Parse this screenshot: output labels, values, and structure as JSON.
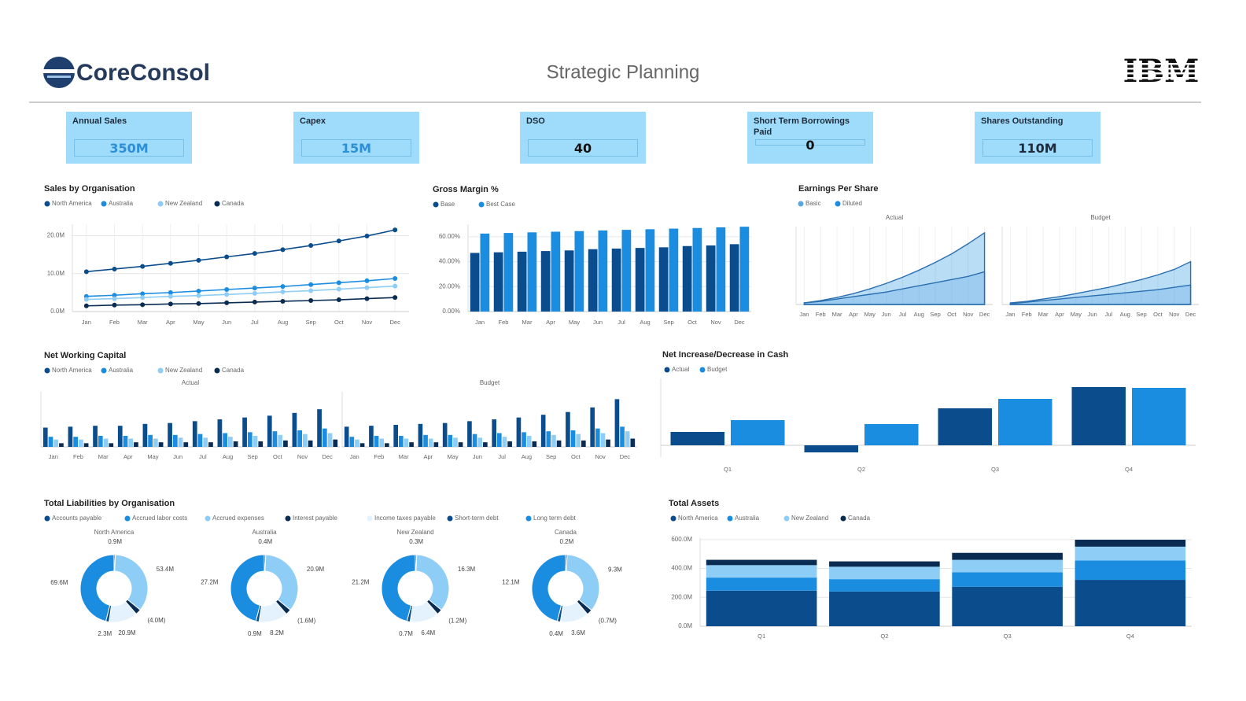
{
  "header": {
    "brand": "CoreConsol",
    "title": "Strategic Planning",
    "logo": "IBM"
  },
  "kpis": [
    {
      "label": "Annual Sales",
      "value": "350M"
    },
    {
      "label": "Capex",
      "value": "15M"
    },
    {
      "label": "DSO",
      "value": "40"
    },
    {
      "label": "Short Term Borrowings Paid",
      "value": "0"
    },
    {
      "label": "Shares Outstanding",
      "value": "110M"
    }
  ],
  "chart_data": [
    {
      "type": "line",
      "title": "Sales by Organisation",
      "categories": [
        "Jan",
        "Feb",
        "Mar",
        "Apr",
        "May",
        "Jun",
        "Jul",
        "Aug",
        "Sep",
        "Oct",
        "Nov",
        "Dec"
      ],
      "series": [
        {
          "name": "North America",
          "color": "#0b4c8c",
          "values": [
            10.5,
            11.2,
            11.9,
            12.7,
            13.5,
            14.4,
            15.3,
            16.3,
            17.4,
            18.6,
            19.9,
            21.5
          ]
        },
        {
          "name": "Australia",
          "color": "#1b8de0",
          "values": [
            4.0,
            4.3,
            4.7,
            5.0,
            5.4,
            5.8,
            6.2,
            6.6,
            7.1,
            7.6,
            8.1,
            8.7
          ]
        },
        {
          "name": "New Zealand",
          "color": "#8ecdf5",
          "values": [
            3.2,
            3.4,
            3.7,
            4.0,
            4.2,
            4.5,
            4.8,
            5.2,
            5.5,
            5.9,
            6.3,
            6.7
          ]
        },
        {
          "name": "Canada",
          "color": "#0a2c52",
          "values": [
            1.5,
            1.7,
            1.8,
            2.0,
            2.1,
            2.3,
            2.5,
            2.7,
            2.9,
            3.1,
            3.4,
            3.7
          ]
        }
      ],
      "ylim": [
        0,
        23
      ],
      "yticks": [
        {
          "value": 0,
          "label": "0.0M"
        },
        {
          "value": 10,
          "label": "10.0M"
        },
        {
          "value": 20,
          "label": "20.0M"
        }
      ],
      "grid": true
    },
    {
      "type": "bar",
      "title": "Gross Margin %",
      "categories": [
        "Jan",
        "Feb",
        "Mar",
        "Apr",
        "May",
        "Jun",
        "Jul",
        "Aug",
        "Sep",
        "Oct",
        "Nov",
        "Dec"
      ],
      "series": [
        {
          "name": "Base",
          "color": "#0b4c8c",
          "values": [
            47,
            47.5,
            48,
            48.5,
            49,
            50,
            50.5,
            51,
            51.5,
            52.5,
            53,
            54
          ]
        },
        {
          "name": "Best Case",
          "color": "#1b8de0",
          "values": [
            62.5,
            63,
            63.5,
            64,
            64.5,
            65,
            65.5,
            66,
            66.5,
            67,
            67.5,
            68
          ]
        }
      ],
      "ylim": [
        0,
        70
      ],
      "yticks": [
        {
          "value": 0,
          "label": "0.00%"
        },
        {
          "value": 20,
          "label": "20.00%"
        },
        {
          "value": 40,
          "label": "40.00%"
        },
        {
          "value": 60,
          "label": "60.00%"
        }
      ],
      "grid": true
    },
    {
      "type": "area",
      "title": "Earnings Per Share",
      "categories": [
        "Jan",
        "Feb",
        "Mar",
        "Apr",
        "May",
        "Jun",
        "Jul",
        "Aug",
        "Sep",
        "Oct",
        "Nov",
        "Dec"
      ],
      "series": [
        {
          "name": "Basic",
          "color": "#5aa7e0"
        },
        {
          "name": "Diluted",
          "color": "#1b8de0"
        }
      ],
      "panels": [
        {
          "title": "Actual",
          "values": [
            [
              0.02,
              0.04,
              0.07,
              0.1,
              0.13,
              0.16,
              0.2,
              0.24,
              0.28,
              0.32,
              0.36,
              0.42
            ],
            [
              0.02,
              0.05,
              0.09,
              0.14,
              0.2,
              0.27,
              0.35,
              0.44,
              0.54,
              0.65,
              0.78,
              0.92
            ]
          ]
        },
        {
          "title": "Budget",
          "values": [
            [
              0.01,
              0.03,
              0.05,
              0.07,
              0.09,
              0.11,
              0.13,
              0.15,
              0.17,
              0.19,
              0.22,
              0.25
            ],
            [
              0.02,
              0.04,
              0.07,
              0.1,
              0.14,
              0.18,
              0.22,
              0.27,
              0.32,
              0.38,
              0.45,
              0.55
            ]
          ]
        }
      ],
      "ylim": [
        0,
        1
      ],
      "grid": true
    },
    {
      "type": "bar",
      "title": "Net Working Capital",
      "categories": [
        "Jan",
        "Feb",
        "Mar",
        "Apr",
        "May",
        "Jun",
        "Jul",
        "Aug",
        "Sep",
        "Oct",
        "Nov",
        "Dec"
      ],
      "series": [
        {
          "name": "North America",
          "color": "#0b4c8c"
        },
        {
          "name": "Australia",
          "color": "#1b8de0"
        },
        {
          "name": "New Zealand",
          "color": "#8ecdf5"
        },
        {
          "name": "Canada",
          "color": "#0a2c52"
        }
      ],
      "panels": [
        {
          "title": "Actual",
          "values": [
            [
              2.1,
              2.2,
              2.3,
              2.3,
              2.5,
              2.6,
              2.8,
              3.0,
              3.2,
              3.4,
              3.7,
              4.1
            ],
            [
              1.1,
              1.1,
              1.2,
              1.2,
              1.3,
              1.3,
              1.4,
              1.5,
              1.6,
              1.7,
              1.8,
              2.0
            ],
            [
              0.8,
              0.8,
              0.9,
              0.9,
              0.9,
              1.0,
              1.0,
              1.1,
              1.2,
              1.3,
              1.4,
              1.5
            ],
            [
              0.4,
              0.4,
              0.4,
              0.5,
              0.5,
              0.5,
              0.5,
              0.6,
              0.6,
              0.7,
              0.7,
              0.8
            ]
          ]
        },
        {
          "title": "Budget",
          "values": [
            [
              2.2,
              2.3,
              2.4,
              2.5,
              2.6,
              2.8,
              3.0,
              3.2,
              3.5,
              3.8,
              4.3,
              5.2
            ],
            [
              1.1,
              1.2,
              1.2,
              1.3,
              1.3,
              1.4,
              1.5,
              1.6,
              1.7,
              1.8,
              2.0,
              2.2
            ],
            [
              0.8,
              0.9,
              0.9,
              0.9,
              1.0,
              1.0,
              1.1,
              1.2,
              1.3,
              1.4,
              1.5,
              1.7
            ],
            [
              0.4,
              0.4,
              0.5,
              0.5,
              0.5,
              0.5,
              0.6,
              0.6,
              0.7,
              0.7,
              0.8,
              0.9
            ]
          ]
        }
      ],
      "ylim": [
        0,
        6
      ],
      "grid": true
    },
    {
      "type": "bar",
      "title": "Net Increase/Decrease in Cash",
      "categories": [
        "Q1",
        "Q2",
        "Q3",
        "Q4"
      ],
      "series": [
        {
          "name": "Actual",
          "color": "#0b4c8c",
          "values": [
            1.7,
            -0.9,
            4.7,
            7.4
          ]
        },
        {
          "name": "Budget",
          "color": "#1b8de0",
          "values": [
            3.2,
            2.7,
            5.9,
            7.3
          ]
        }
      ],
      "ylim": [
        -1.5,
        8.5
      ],
      "grid": true
    },
    {
      "type": "donut",
      "title": "Total Liabilities by Organisation",
      "categories": [
        "Accounts payable",
        "Accrued labor costs",
        "Accrued expenses",
        "Interest payable",
        "Income taxes payable",
        "Short-term debt",
        "Long term debt"
      ],
      "colors": [
        "#0b4c8c",
        "#1b8de0",
        "#8ecdf5",
        "#0a2c52",
        "#e3f2fc",
        "#0b4c8c",
        "#1b8de0"
      ],
      "panels": [
        {
          "title": "North America",
          "values": [
            0.9,
            0,
            53.4,
            -4.0,
            20.9,
            2.3,
            69.6
          ],
          "value_labels": [
            "0.9M",
            null,
            "53.4M",
            "(4.0M)",
            "20.9M",
            "2.3M",
            "69.6M"
          ]
        },
        {
          "title": "Australia",
          "values": [
            0.4,
            0,
            20.9,
            -1.6,
            8.2,
            0.9,
            27.2
          ],
          "value_labels": [
            "0.4M",
            null,
            "20.9M",
            "(1.6M)",
            "8.2M",
            "0.9M",
            "27.2M"
          ]
        },
        {
          "title": "New Zealand",
          "values": [
            0.3,
            0,
            16.3,
            -1.2,
            6.4,
            0.7,
            21.2
          ],
          "value_labels": [
            "0.3M",
            null,
            "16.3M",
            "(1.2M)",
            "6.4M",
            "0.7M",
            "21.2M"
          ]
        },
        {
          "title": "Canada",
          "values": [
            0.2,
            0,
            9.3,
            -0.7,
            3.6,
            0.4,
            12.1
          ],
          "value_labels": [
            "0.2M",
            null,
            "9.3M",
            "(0.7M)",
            "3.6M",
            "0.4M",
            "12.1M"
          ]
        }
      ]
    },
    {
      "type": "bar",
      "stacked": true,
      "title": "Total Assets",
      "categories": [
        "Q1",
        "Q2",
        "Q3",
        "Q4"
      ],
      "series": [
        {
          "name": "North America",
          "color": "#0b4c8c",
          "values": [
            246,
            241,
            273,
            321
          ]
        },
        {
          "name": "Australia",
          "color": "#1b8de0",
          "values": [
            91,
            85,
            101,
            134
          ]
        },
        {
          "name": "New Zealand",
          "color": "#8ecdf5",
          "values": [
            86,
            86,
            86,
            96
          ]
        },
        {
          "name": "Canada",
          "color": "#0a2c52",
          "values": [
            37,
            37,
            48,
            48
          ]
        }
      ],
      "ylim": [
        0,
        610
      ],
      "yticks": [
        {
          "value": 0,
          "label": "0.0M"
        },
        {
          "value": 200,
          "label": "200.0M"
        },
        {
          "value": 400,
          "label": "400.0M"
        },
        {
          "value": 600,
          "label": "600.0M"
        }
      ],
      "grid": true
    }
  ]
}
